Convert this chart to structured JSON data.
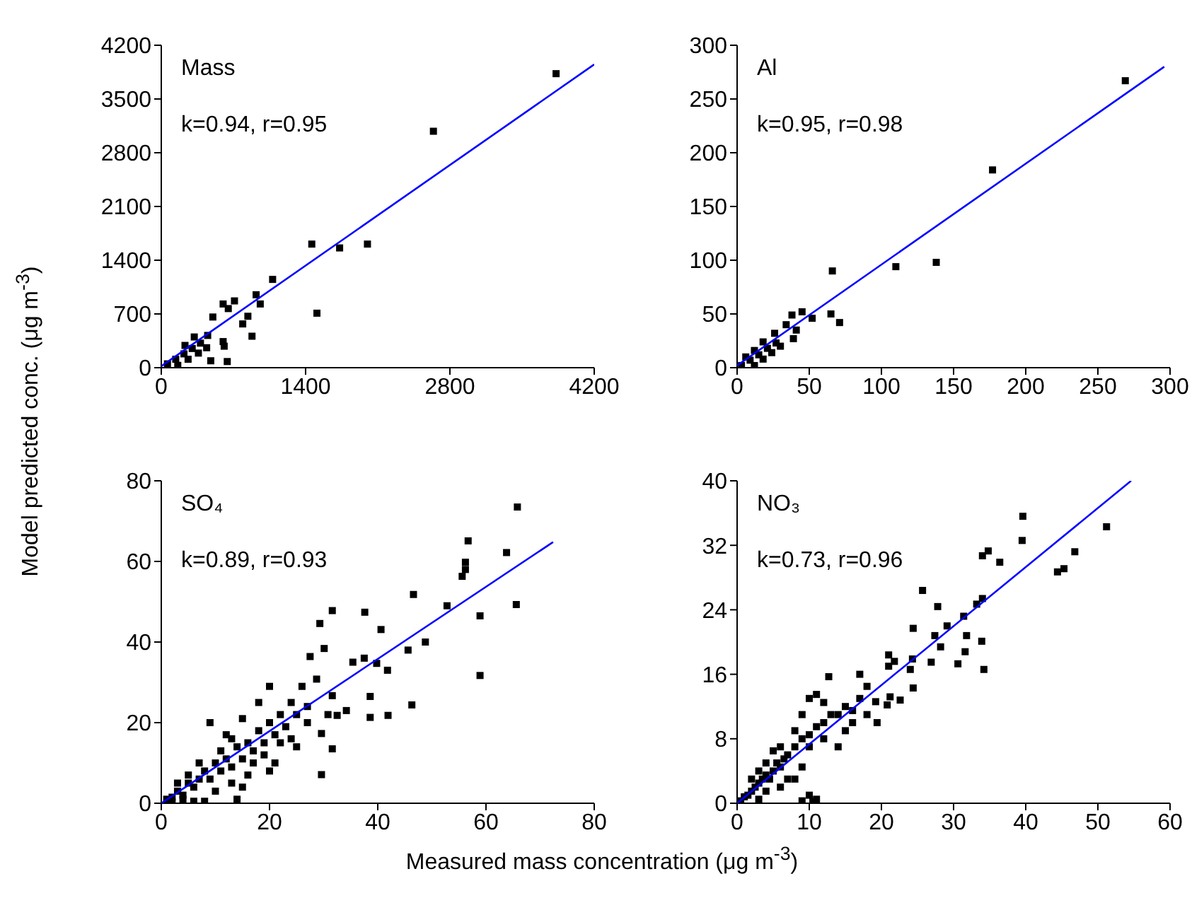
{
  "chart_data": [
    {
      "type": "scatter",
      "ylabel": "Model predicted conc. (μg m$^{-3}$)",
      "annotations": [
        "Mass",
        "k=0.94, r=0.95"
      ],
      "marker": "square",
      "xlim": [
        0,
        4200
      ],
      "xticks": [
        0,
        1400,
        2800,
        4200
      ],
      "ylim": [
        0,
        4200
      ],
      "yticks": [
        0,
        700,
        1400,
        2100,
        2800,
        3500,
        4200
      ],
      "series": [
        {
          "type": "scatter",
          "color": "#000000",
          "x": [
            3830,
            2640,
            1460,
            1730,
            2000,
            1080,
            1510,
            920,
            960,
            880,
            840,
            790,
            710,
            650,
            600,
            500,
            600,
            640,
            610,
            480,
            60,
            140,
            220,
            300,
            380,
            450,
            160,
            260,
            360,
            440,
            230,
            320
          ],
          "values": [
            3830,
            3080,
            1610,
            1560,
            1610,
            1150,
            710,
            950,
            830,
            410,
            670,
            570,
            870,
            770,
            830,
            660,
            340,
            80,
            280,
            90,
            50,
            110,
            180,
            250,
            320,
            420,
            30,
            110,
            190,
            260,
            290,
            400
          ]
        },
        {
          "type": "line",
          "color": "#0000ff",
          "marker": "none",
          "x": [
            0,
            4200
          ],
          "values": [
            20,
            3950
          ]
        }
      ]
    },
    {
      "type": "scatter",
      "annotations": [
        "Al",
        "k=0.95, r=0.98"
      ],
      "marker": "square",
      "xlim": [
        0,
        300
      ],
      "xticks": [
        0,
        50,
        100,
        150,
        200,
        250,
        300
      ],
      "ylim": [
        0,
        300
      ],
      "yticks": [
        0,
        50,
        100,
        150,
        200,
        250,
        300
      ],
      "series": [
        {
          "type": "scatter",
          "color": "#000000",
          "x": [
            269,
            177,
            138,
            110,
            66,
            65,
            71,
            52,
            45,
            38,
            39,
            41,
            34,
            3,
            9,
            15,
            21,
            27,
            12,
            18,
            24,
            30,
            6,
            12,
            18,
            26
          ],
          "values": [
            267,
            184,
            98,
            94,
            90,
            50,
            42,
            46,
            52,
            49,
            27,
            35,
            40,
            2,
            7,
            12,
            18,
            23,
            2,
            8,
            14,
            20,
            10,
            16,
            24,
            32
          ]
        },
        {
          "type": "line",
          "color": "#0000ff",
          "marker": "none",
          "x": [
            0,
            296
          ],
          "values": [
            2,
            280
          ]
        }
      ]
    },
    {
      "type": "scatter",
      "xlabel": "Measured mass concentration (μg m$^{-3}$)",
      "annotations": [
        "SO₄",
        "k=0.89, r=0.93"
      ],
      "marker": "square",
      "xlim": [
        0,
        80
      ],
      "xticks": [
        0,
        20,
        40,
        60,
        80
      ],
      "ylim": [
        0,
        80
      ],
      "yticks": [
        0,
        20,
        40,
        60,
        80
      ],
      "series": [
        {
          "type": "scatter",
          "color": "#000000",
          "x": [
            65.8,
            56.7,
            63.8,
            56.2,
            56.2,
            55.6,
            65.6,
            58.9,
            58.9,
            46.6,
            52.8,
            48.8,
            45.6,
            46.3,
            41.8,
            41.9,
            40.6,
            39.8,
            38.6,
            38.6,
            37.6,
            31.6,
            29.3,
            35.4,
            37.5,
            31.6,
            29.6,
            29.6,
            30.8,
            32.5,
            34.2,
            30.1,
            27.5,
            31.6,
            28.7,
            1,
            2,
            3,
            4,
            5,
            6,
            7,
            8,
            9,
            10,
            11,
            12,
            13,
            14,
            15,
            16,
            17,
            18,
            19,
            20,
            21,
            22,
            23,
            24,
            25,
            26,
            27,
            9,
            12,
            15,
            18,
            20,
            14,
            15,
            16,
            20,
            21,
            22,
            24,
            6,
            8,
            10,
            13,
            17,
            19,
            5,
            7,
            3,
            4,
            2,
            11,
            13,
            25,
            27
          ],
          "values": [
            73.5,
            65.1,
            62.2,
            59.8,
            58,
            56.3,
            49.3,
            46.5,
            31.7,
            51.8,
            49,
            40,
            38,
            24.4,
            33,
            21.8,
            43.1,
            34.7,
            21.3,
            26.5,
            47.4,
            47.8,
            44.6,
            35,
            36,
            13.5,
            7.1,
            17.3,
            22,
            21.8,
            23,
            38.4,
            36.4,
            26.7,
            30.8,
            1,
            1.5,
            3,
            2,
            5,
            4,
            6,
            8,
            6,
            10,
            8,
            11,
            9,
            14,
            11,
            15,
            13,
            18,
            15,
            20,
            17,
            22,
            19,
            25,
            22,
            29,
            24,
            20,
            17,
            21,
            25,
            29,
            1,
            4,
            7,
            8,
            10,
            15,
            16,
            0.5,
            0.5,
            3,
            5,
            10,
            12,
            7,
            10,
            5,
            1,
            0.3,
            13,
            16,
            14,
            20
          ]
        },
        {
          "type": "line",
          "color": "#0000ff",
          "marker": "none",
          "x": [
            0,
            72.4
          ],
          "values": [
            0,
            64.8
          ]
        }
      ]
    },
    {
      "type": "scatter",
      "annotations": [
        "NO₃",
        "k=0.73, r=0.96"
      ],
      "marker": "square",
      "xlim": [
        0,
        60
      ],
      "xticks": [
        0,
        10,
        20,
        30,
        40,
        50,
        60
      ],
      "ylim": [
        0,
        40
      ],
      "yticks": [
        0,
        8,
        16,
        24,
        32,
        40
      ],
      "series": [
        {
          "type": "scatter",
          "color": "#000000",
          "x": [
            51.2,
            46.8,
            45.3,
            44.4,
            39.6,
            39.5,
            36.4,
            34.8,
            34,
            34,
            33.2,
            33.9,
            34.2,
            31.8,
            31.6,
            31.4,
            30.6,
            29.1,
            28.2,
            27.8,
            27.4,
            26.9,
            25.7,
            24.4,
            24.4,
            24.3,
            24,
            22.6,
            21.8,
            21,
            21,
            21.2,
            20.8,
            19.4,
            19.2,
            12.7,
            0.5,
            1,
            1.5,
            2,
            2.5,
            3,
            3.5,
            4,
            4.5,
            5,
            5.5,
            6,
            6.5,
            7,
            8,
            9,
            10,
            11,
            12,
            13,
            14,
            15,
            16,
            17,
            18,
            17,
            10,
            11,
            12,
            9,
            8,
            6,
            5,
            4,
            3,
            2,
            10,
            12,
            14,
            15,
            4,
            6,
            3,
            8,
            9,
            9,
            10,
            11,
            10.5,
            7,
            16,
            18
          ],
          "values": [
            34.3,
            31.2,
            29.1,
            28.7,
            35.6,
            32.6,
            29.9,
            31.3,
            30.7,
            25.4,
            24.7,
            20.1,
            16.6,
            20.8,
            18.8,
            23.2,
            17.3,
            22,
            19.4,
            24.4,
            20.8,
            17.5,
            26.4,
            21.7,
            14.3,
            17.9,
            16.6,
            12.8,
            17.6,
            18.4,
            17,
            13.2,
            12.2,
            10,
            12.6,
            15.7,
            0.3,
            0.8,
            1,
            1.5,
            2,
            2.5,
            3,
            3.5,
            3,
            4,
            5,
            4.5,
            5.5,
            6,
            7,
            8,
            8.5,
            9.5,
            10,
            11,
            11,
            12,
            11.5,
            13,
            14.5,
            16,
            13,
            13.5,
            12.5,
            11,
            9,
            7,
            6.5,
            5,
            4,
            3,
            7,
            8,
            7,
            9,
            1.5,
            2,
            0.5,
            3,
            4.5,
            0.3,
            1,
            0.5,
            0.2,
            3,
            10,
            11
          ]
        },
        {
          "type": "line",
          "color": "#0000ff",
          "marker": "none",
          "x": [
            0,
            54.6
          ],
          "values": [
            0,
            40
          ]
        }
      ]
    }
  ]
}
